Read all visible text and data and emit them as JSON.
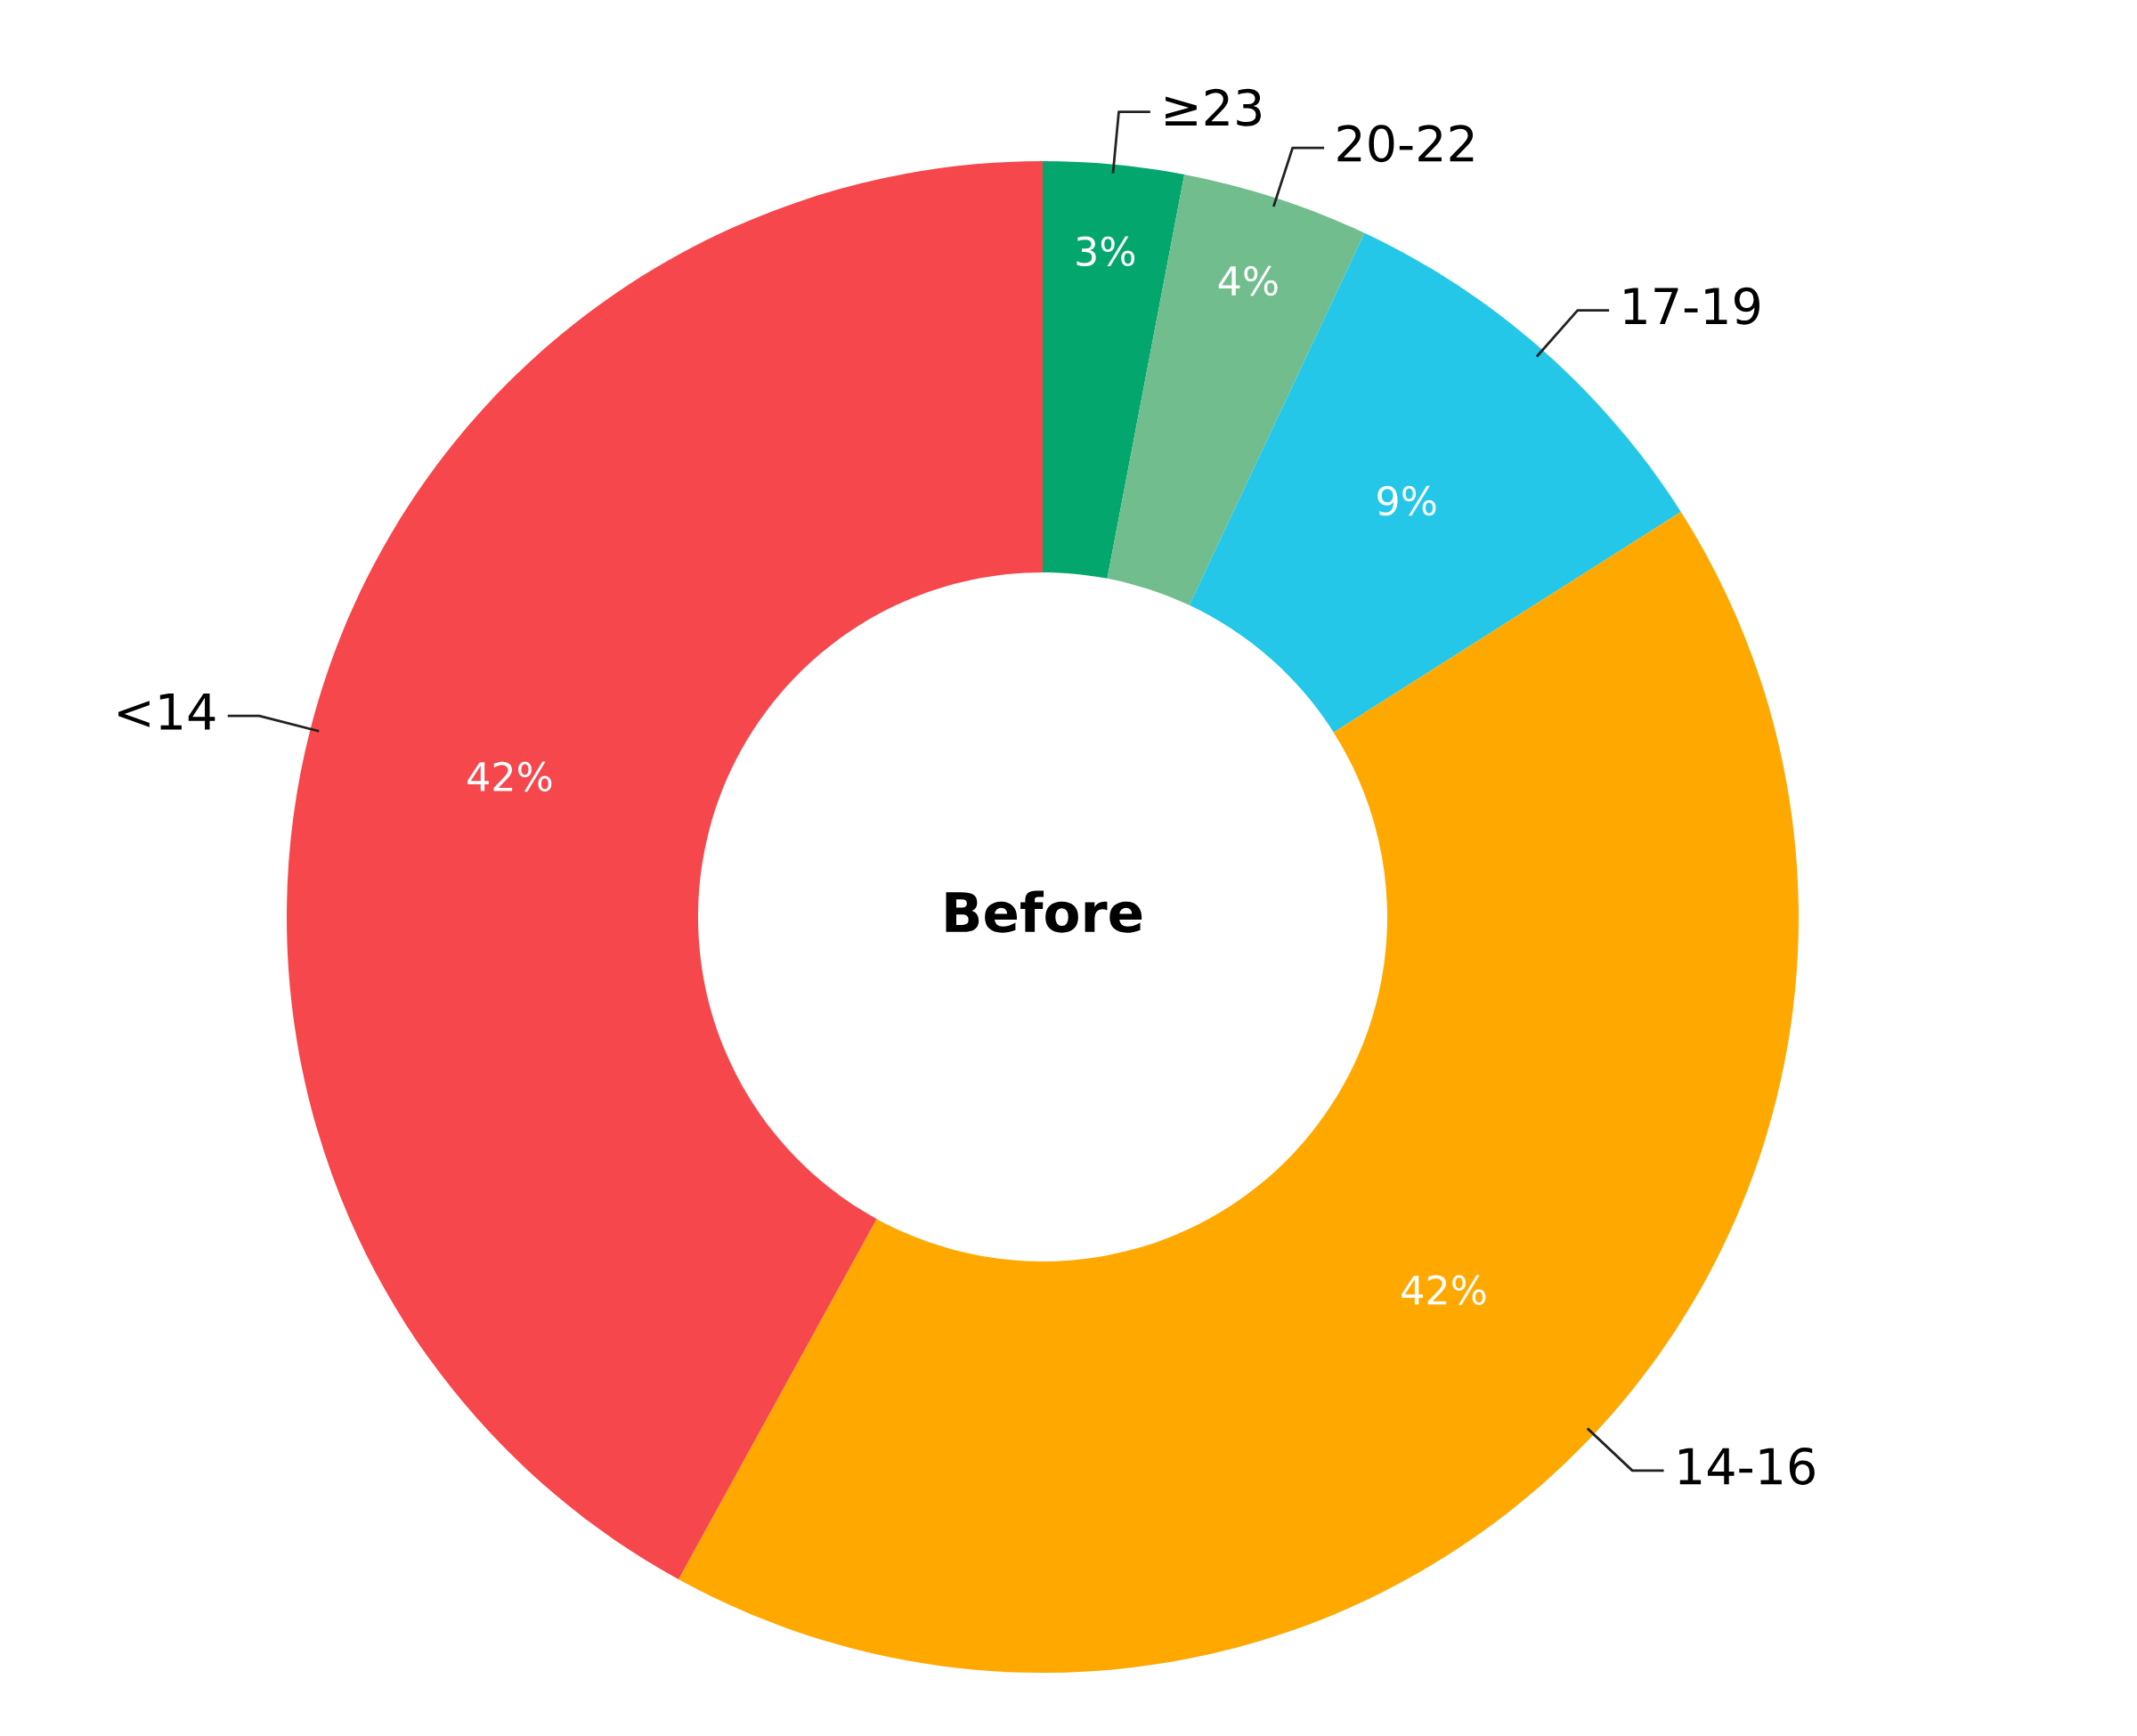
{
  "chart_data": {
    "type": "donut",
    "title": "Before",
    "categories": [
      "≥23",
      "20-22",
      "17-19",
      "14-16",
      "<14"
    ],
    "values": [
      3,
      4,
      9,
      42,
      42
    ],
    "colors": [
      "#03a66d",
      "#72bd8e",
      "#24c7e8",
      "#ffa800",
      "#f5474c"
    ],
    "value_labels": [
      "3%",
      "4%",
      "9%",
      "42%",
      "42%"
    ]
  }
}
